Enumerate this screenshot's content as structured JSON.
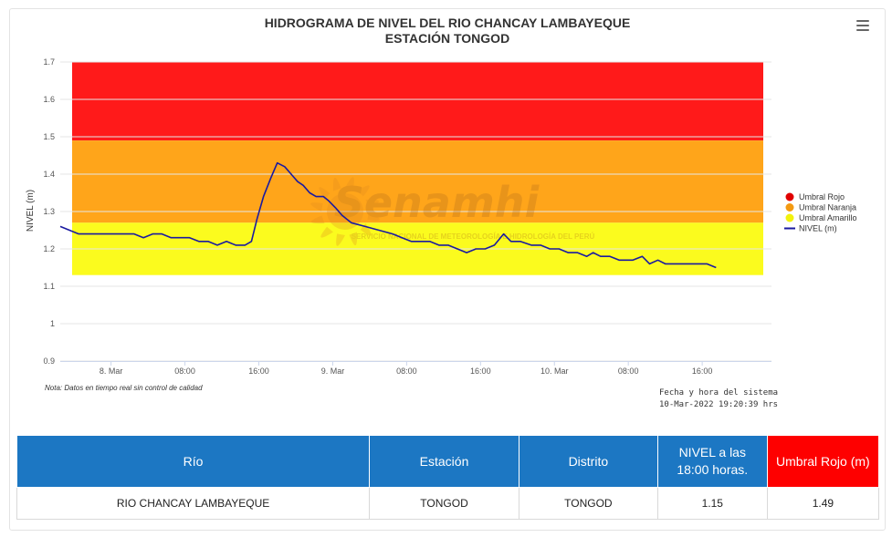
{
  "chart_data": {
    "type": "line",
    "title": "HIDROGRAMA DE NIVEL DEL RIO CHANCAY LAMBAYEQUE",
    "subtitle": "ESTACIÓN TONGOD",
    "ylabel": "NIVEL (m)",
    "ylim": [
      0.9,
      1.7
    ],
    "y_ticks": [
      "0.9",
      "1",
      "1.1",
      "1.2",
      "1.3",
      "1.4",
      "1.5",
      "1.6",
      "1.7"
    ],
    "x_ticks": [
      "8. Mar",
      "08:00",
      "16:00",
      "9. Mar",
      "08:00",
      "16:00",
      "10. Mar",
      "08:00",
      "16:00"
    ],
    "x_tick_hours": [
      24,
      32,
      40,
      48,
      56,
      64,
      72,
      80,
      88
    ],
    "x_unit": "hours from 7-Mar-2022 00:00",
    "xlim": [
      18.5,
      95.5
    ],
    "bands": [
      {
        "name": "Umbral Rojo",
        "from": 1.49,
        "to": 1.7,
        "color": "#ff1a1a"
      },
      {
        "name": "Umbral Naranja",
        "from": 1.27,
        "to": 1.49,
        "color": "#ffa51a"
      },
      {
        "name": "Umbral Amarillo",
        "from": 1.13,
        "to": 1.27,
        "color": "#fbfb1e"
      }
    ],
    "grid": true,
    "legend_position": "right",
    "series": [
      {
        "name": "NIVEL (m)",
        "color": "#1a1aa0",
        "points": [
          [
            18.5,
            1.26
          ],
          [
            19.5,
            1.25
          ],
          [
            20.5,
            1.24
          ],
          [
            21.5,
            1.24
          ],
          [
            22.5,
            1.24
          ],
          [
            23.5,
            1.24
          ],
          [
            24.5,
            1.24
          ],
          [
            25.5,
            1.24
          ],
          [
            26.5,
            1.24
          ],
          [
            27.5,
            1.23
          ],
          [
            28.5,
            1.24
          ],
          [
            29.5,
            1.24
          ],
          [
            30.5,
            1.23
          ],
          [
            31.5,
            1.23
          ],
          [
            32.5,
            1.23
          ],
          [
            33.5,
            1.22
          ],
          [
            34.5,
            1.22
          ],
          [
            35.5,
            1.21
          ],
          [
            36.5,
            1.22
          ],
          [
            37.5,
            1.21
          ],
          [
            38.5,
            1.21
          ],
          [
            39.2,
            1.22
          ],
          [
            39.8,
            1.28
          ],
          [
            40.5,
            1.34
          ],
          [
            41.3,
            1.39
          ],
          [
            42.0,
            1.43
          ],
          [
            42.8,
            1.42
          ],
          [
            43.5,
            1.4
          ],
          [
            44.2,
            1.38
          ],
          [
            44.8,
            1.37
          ],
          [
            45.5,
            1.35
          ],
          [
            46.2,
            1.34
          ],
          [
            47.0,
            1.34
          ],
          [
            47.5,
            1.33
          ],
          [
            48.3,
            1.31
          ],
          [
            49.0,
            1.29
          ],
          [
            50.0,
            1.27
          ],
          [
            51.5,
            1.26
          ],
          [
            53.0,
            1.25
          ],
          [
            54.5,
            1.24
          ],
          [
            55.5,
            1.23
          ],
          [
            56.5,
            1.22
          ],
          [
            57.5,
            1.22
          ],
          [
            58.5,
            1.22
          ],
          [
            59.5,
            1.21
          ],
          [
            60.5,
            1.21
          ],
          [
            61.5,
            1.2
          ],
          [
            62.5,
            1.19
          ],
          [
            63.5,
            1.2
          ],
          [
            64.5,
            1.2
          ],
          [
            65.5,
            1.21
          ],
          [
            66.5,
            1.24
          ],
          [
            67.3,
            1.22
          ],
          [
            68.3,
            1.22
          ],
          [
            69.5,
            1.21
          ],
          [
            70.5,
            1.21
          ],
          [
            71.5,
            1.2
          ],
          [
            72.5,
            1.2
          ],
          [
            73.5,
            1.19
          ],
          [
            74.5,
            1.19
          ],
          [
            75.5,
            1.18
          ],
          [
            76.2,
            1.19
          ],
          [
            77.0,
            1.18
          ],
          [
            78.0,
            1.18
          ],
          [
            79.0,
            1.17
          ],
          [
            80.5,
            1.17
          ],
          [
            81.5,
            1.18
          ],
          [
            82.3,
            1.16
          ],
          [
            83.2,
            1.17
          ],
          [
            84.0,
            1.16
          ],
          [
            85.5,
            1.16
          ],
          [
            87.0,
            1.16
          ],
          [
            88.5,
            1.16
          ],
          [
            89.5,
            1.15
          ]
        ]
      }
    ]
  },
  "watermark": {
    "brand": "Senamhi",
    "tagline": "SERVICIO NACIONAL DE METEOROLOGÍA E HIDROLOGÍA DEL PERÚ"
  },
  "note": "Nota: Datos en tiempo real sin control de calidad",
  "system_time_label": "Fecha y hora del sistema",
  "system_time_value": "10-Mar-2022 19:20:39 hrs",
  "table": {
    "headers": [
      "Río",
      "Estación",
      "Distrito",
      "NIVEL a las 18:00 horas.",
      "Umbral Rojo (m)"
    ],
    "rows": [
      [
        "RIO CHANCAY LAMBAYEQUE",
        "TONGOD",
        "TONGOD",
        "1.15",
        "1.49"
      ]
    ]
  }
}
